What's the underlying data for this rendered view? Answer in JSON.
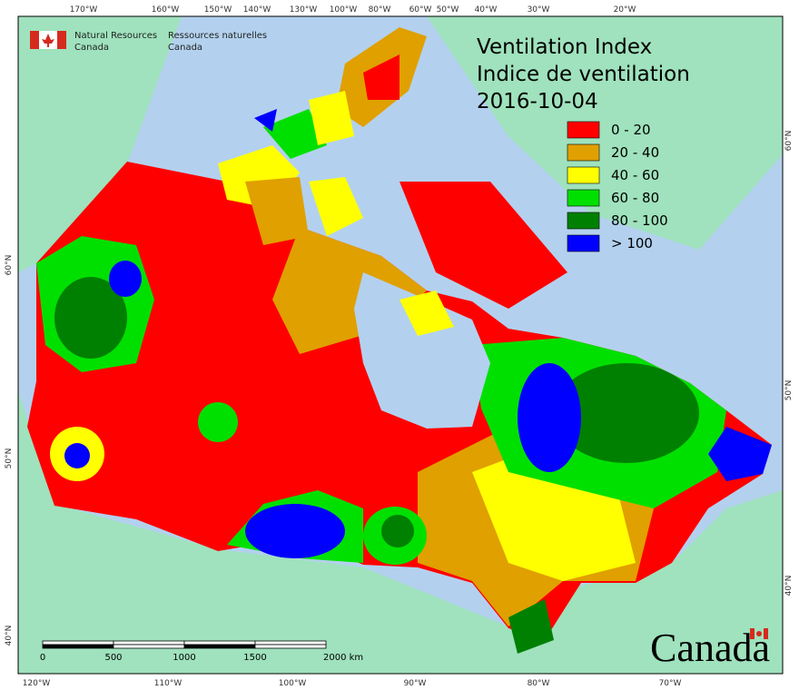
{
  "header": {
    "title": "Ventilation Index",
    "title_fr": "Indice de ventilation",
    "date": "2016-10-04"
  },
  "agency": {
    "en": [
      "Natural Resources",
      "Canada"
    ],
    "fr": [
      "Ressources naturelles",
      "Canada"
    ]
  },
  "legend": [
    {
      "label": "0 - 20",
      "color": "#ff0000"
    },
    {
      "label": "20 - 40",
      "color": "#e0a000"
    },
    {
      "label": "40 - 60",
      "color": "#ffff00"
    },
    {
      "label": "60 - 80",
      "color": "#00e000"
    },
    {
      "label": "80 - 100",
      "color": "#008000"
    },
    {
      "label": "> 100",
      "color": "#0000ff"
    }
  ],
  "graticule": {
    "top": [
      "170°W",
      "160°W",
      "150°W",
      "140°W",
      "130°W",
      "100°W",
      "80°W",
      "60°W",
      "50°W",
      "40°W",
      "30°W",
      "20°W"
    ],
    "bottom": [
      "120°W",
      "110°W",
      "100°W",
      "90°W",
      "80°W",
      "70°W"
    ],
    "left": [
      "60°N",
      "50°N",
      "40°N"
    ],
    "right": [
      "60°N",
      "50°N",
      "40°N"
    ]
  },
  "scale_bar": [
    "0",
    "500",
    "1000",
    "1500",
    "2000 km"
  ],
  "wordmark": "Canada"
}
